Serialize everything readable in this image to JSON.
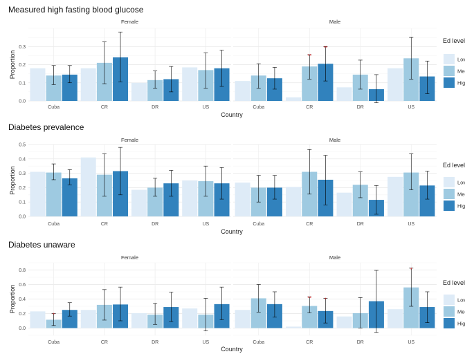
{
  "legend": {
    "title": "Ed level",
    "items": [
      {
        "label": "Low",
        "color": "#deebf7"
      },
      {
        "label": "Med",
        "color": "#9ecae1"
      },
      {
        "label": "High",
        "color": "#3182bd"
      }
    ]
  },
  "chart_data": [
    {
      "type": "bar",
      "title": "Measured high fasting blood glucose",
      "xlabel": "Country",
      "ylabel": "Proportion",
      "ylim": [
        0,
        0.4
      ],
      "yticks": [
        0.0,
        0.1,
        0.2,
        0.3
      ],
      "facets": [
        "Female",
        "Male"
      ],
      "categories": [
        "Cuba",
        "CR",
        "DR",
        "US"
      ],
      "grid": true,
      "legend_position": "right",
      "series_colors": [
        "#deebf7",
        "#9ecae1",
        "#3182bd"
      ],
      "values": {
        "Female": [
          [
            0.18,
            0.14,
            0.145
          ],
          [
            0.18,
            0.21,
            0.24
          ],
          [
            0.1,
            0.115,
            0.12
          ],
          [
            0.185,
            0.17,
            0.18
          ]
        ],
        "Male": [
          [
            0.11,
            0.14,
            0.125
          ],
          [
            0.02,
            0.19,
            0.205
          ],
          [
            0.075,
            0.145,
            0.065
          ],
          [
            0.18,
            0.235,
            0.135
          ]
        ]
      },
      "errors": {
        "Female": [
          [
            null,
            [
              0.09,
              0.195
            ],
            [
              0.1,
              0.195
            ]
          ],
          [
            null,
            [
              0.095,
              0.325
            ],
            [
              0.105,
              0.38
            ]
          ],
          [
            null,
            [
              0.07,
              0.165
            ],
            [
              0.05,
              0.19
            ]
          ],
          [
            null,
            [
              0.07,
              0.265
            ],
            [
              0.08,
              0.28
            ]
          ]
        ],
        "Male": [
          [
            null,
            [
              0.07,
              0.205
            ],
            [
              0.065,
              0.185
            ]
          ],
          [
            null,
            [
              0.12,
              0.255
            ],
            [
              0.11,
              0.3
            ]
          ],
          [
            null,
            [
              0.065,
              0.225
            ],
            [
              -0.01,
              0.145
            ]
          ],
          [
            null,
            [
              0.12,
              0.35
            ],
            [
              0.04,
              0.22
            ]
          ]
        ]
      },
      "annotations": [
        {
          "facet": "Male",
          "category": "CR",
          "series": 1,
          "text": "**"
        },
        {
          "facet": "Male",
          "category": "CR",
          "series": 2,
          "text": "**"
        }
      ]
    },
    {
      "type": "bar",
      "title": "Diabetes prevalence",
      "xlabel": "Country",
      "ylabel": "Proportion",
      "ylim": [
        0,
        0.5
      ],
      "yticks": [
        0.0,
        0.1,
        0.2,
        0.3,
        0.4,
        0.5
      ],
      "facets": [
        "Female",
        "Male"
      ],
      "categories": [
        "Cuba",
        "CR",
        "DR",
        "US"
      ],
      "grid": true,
      "legend_position": "right",
      "series_colors": [
        "#deebf7",
        "#9ecae1",
        "#3182bd"
      ],
      "values": {
        "Female": [
          [
            0.31,
            0.305,
            0.265
          ],
          [
            0.41,
            0.29,
            0.315
          ],
          [
            0.185,
            0.2,
            0.23
          ],
          [
            0.25,
            0.245,
            0.23
          ]
        ],
        "Male": [
          [
            0.235,
            0.2,
            0.2
          ],
          [
            0.205,
            0.31,
            0.255
          ],
          [
            0.165,
            0.22,
            0.115
          ],
          [
            0.275,
            0.305,
            0.215
          ]
        ]
      },
      "errors": {
        "Female": [
          [
            null,
            [
              0.255,
              0.365
            ],
            [
              0.22,
              0.325
            ]
          ],
          [
            null,
            [
              0.14,
              0.435
            ],
            [
              0.15,
              0.48
            ]
          ],
          [
            null,
            [
              0.14,
              0.265
            ],
            [
              0.14,
              0.32
            ]
          ],
          [
            null,
            [
              0.14,
              0.35
            ],
            [
              0.12,
              0.34
            ]
          ]
        ],
        "Male": [
          [
            null,
            [
              0.1,
              0.285
            ],
            [
              0.12,
              0.285
            ]
          ],
          [
            null,
            [
              0.155,
              0.465
            ],
            [
              0.08,
              0.425
            ]
          ],
          [
            null,
            [
              0.13,
              0.31
            ],
            [
              0.015,
              0.215
            ]
          ],
          [
            null,
            [
              0.185,
              0.435
            ],
            [
              0.12,
              0.315
            ]
          ]
        ]
      },
      "annotations": []
    },
    {
      "type": "bar",
      "title": "Diabetes unaware",
      "xlabel": "Country",
      "ylabel": "Proportion",
      "ylim": [
        -0.1,
        0.9
      ],
      "yticks": [
        0.0,
        0.2,
        0.4,
        0.6,
        0.8
      ],
      "facets": [
        "Female",
        "Male"
      ],
      "categories": [
        "Cuba",
        "CR",
        "DR",
        "US"
      ],
      "grid": true,
      "legend_position": "right",
      "series_colors": [
        "#deebf7",
        "#9ecae1",
        "#3182bd"
      ],
      "values": {
        "Female": [
          [
            0.23,
            0.115,
            0.25
          ],
          [
            0.25,
            0.32,
            0.325
          ],
          [
            0.205,
            0.185,
            0.29
          ],
          [
            0.27,
            0.185,
            0.33
          ]
        ],
        "Male": [
          [
            0.25,
            0.41,
            0.33
          ],
          [
            0.02,
            0.305,
            0.235
          ],
          [
            0.16,
            0.205,
            0.37
          ],
          [
            0.26,
            0.56,
            0.29
          ]
        ]
      },
      "errors": {
        "Female": [
          [
            null,
            [
              0.035,
              0.2
            ],
            [
              0.165,
              0.35
            ]
          ],
          [
            null,
            [
              0.11,
              0.53
            ],
            [
              0.1,
              0.565
            ]
          ],
          [
            null,
            [
              0.05,
              0.34
            ],
            [
              0.09,
              0.495
            ]
          ],
          [
            null,
            [
              -0.04,
              0.41
            ],
            [
              0.115,
              0.565
            ]
          ]
        ],
        "Male": [
          [
            null,
            [
              0.22,
              0.6
            ],
            [
              0.15,
              0.5
            ]
          ],
          [
            null,
            [
              0.21,
              0.43
            ],
            [
              0.07,
              0.41
            ]
          ],
          [
            null,
            [
              0.0,
              0.42
            ],
            [
              -0.06,
              0.795
            ]
          ],
          [
            null,
            [
              0.3,
              0.825
            ],
            [
              0.075,
              0.5
            ]
          ]
        ]
      },
      "annotations": [
        {
          "facet": "Female",
          "category": "Cuba",
          "series": 1,
          "text": "*"
        },
        {
          "facet": "Male",
          "category": "CR",
          "series": 1,
          "text": "**"
        },
        {
          "facet": "Male",
          "category": "CR",
          "series": 2,
          "text": "*"
        },
        {
          "facet": "Male",
          "category": "US",
          "series": 1,
          "text": "*"
        }
      ]
    }
  ]
}
